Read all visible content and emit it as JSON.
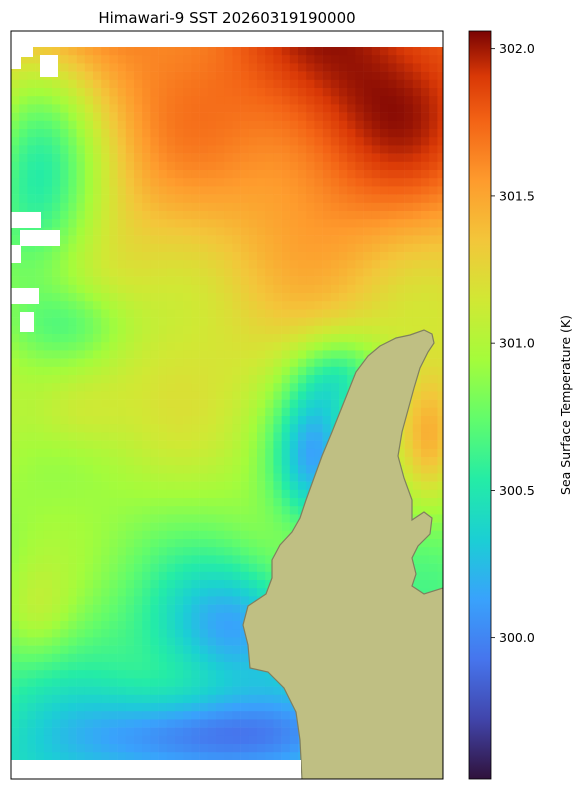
{
  "figure": {
    "title": "Himawari-9 SST 20260319190000"
  },
  "colorbar": {
    "label": "Sea Surface Temperature (K)",
    "range": [
      299.52,
      302.06
    ],
    "ticks": [
      {
        "value": 300.0,
        "label": "300.0"
      },
      {
        "value": 300.5,
        "label": "300.5"
      },
      {
        "value": 301.0,
        "label": "301.0"
      },
      {
        "value": 301.5,
        "label": "301.5"
      },
      {
        "value": 302.0,
        "label": "302.0"
      }
    ],
    "colormap": "turbo"
  },
  "map": {
    "land_color": "#bfbf83",
    "land_edge_color": "#7f7f5f",
    "missing_color": "#ffffff"
  }
}
